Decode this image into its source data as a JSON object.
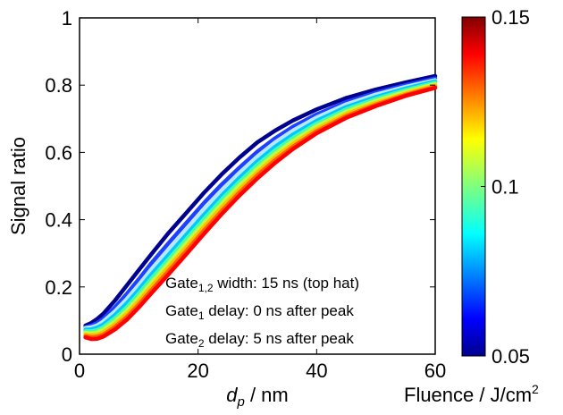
{
  "chart_data": {
    "type": "line",
    "xlabel_main": "d",
    "xlabel_sub": "p",
    "xlabel_unit": " / nm",
    "ylabel": "Signal ratio",
    "xlim": [
      0,
      60
    ],
    "ylim": [
      0,
      1
    ],
    "x_ticks": [
      "0",
      "20",
      "40",
      "60"
    ],
    "y_ticks": [
      "0",
      "0.2",
      "0.4",
      "0.6",
      "0.8",
      "1"
    ],
    "x": [
      1,
      2,
      3,
      4,
      6,
      8,
      10,
      12,
      15,
      18,
      21,
      24,
      27,
      30,
      33,
      36,
      40,
      45,
      50,
      55,
      60
    ],
    "series": [
      {
        "fluence": 0.05,
        "color": "#00008f",
        "values": [
          0.085,
          0.093,
          0.105,
          0.12,
          0.16,
          0.205,
          0.25,
          0.295,
          0.36,
          0.42,
          0.48,
          0.535,
          0.585,
          0.63,
          0.665,
          0.695,
          0.728,
          0.762,
          0.787,
          0.808,
          0.827
        ]
      },
      {
        "fluence": 0.065,
        "color": "#1e40ff",
        "values": [
          0.08,
          0.085,
          0.093,
          0.105,
          0.14,
          0.18,
          0.223,
          0.268,
          0.33,
          0.39,
          0.45,
          0.505,
          0.555,
          0.602,
          0.642,
          0.676,
          0.713,
          0.75,
          0.778,
          0.8,
          0.82
        ]
      },
      {
        "fluence": 0.08,
        "color": "#b8e8ff",
        "values": [
          0.078,
          0.08,
          0.086,
          0.097,
          0.128,
          0.165,
          0.206,
          0.25,
          0.31,
          0.37,
          0.43,
          0.487,
          0.54,
          0.588,
          0.63,
          0.665,
          0.704,
          0.743,
          0.772,
          0.795,
          0.815
        ]
      },
      {
        "fluence": 0.09,
        "color": "#00c8ff",
        "values": [
          0.073,
          0.074,
          0.079,
          0.088,
          0.117,
          0.152,
          0.192,
          0.235,
          0.295,
          0.355,
          0.415,
          0.472,
          0.525,
          0.574,
          0.617,
          0.653,
          0.694,
          0.735,
          0.765,
          0.79,
          0.811
        ]
      },
      {
        "fluence": 0.1,
        "color": "#40ffb0",
        "values": [
          0.068,
          0.068,
          0.072,
          0.08,
          0.107,
          0.14,
          0.18,
          0.222,
          0.282,
          0.342,
          0.402,
          0.46,
          0.513,
          0.563,
          0.606,
          0.643,
          0.686,
          0.728,
          0.759,
          0.785,
          0.807
        ]
      },
      {
        "fluence": 0.11,
        "color": "#c0ff40",
        "values": [
          0.063,
          0.062,
          0.065,
          0.073,
          0.098,
          0.13,
          0.169,
          0.21,
          0.27,
          0.33,
          0.39,
          0.448,
          0.502,
          0.552,
          0.596,
          0.634,
          0.678,
          0.721,
          0.753,
          0.78,
          0.803
        ]
      },
      {
        "fluence": 0.12,
        "color": "#ffc000",
        "values": [
          0.058,
          0.056,
          0.058,
          0.065,
          0.089,
          0.12,
          0.158,
          0.199,
          0.258,
          0.318,
          0.379,
          0.437,
          0.491,
          0.541,
          0.586,
          0.625,
          0.67,
          0.714,
          0.747,
          0.775,
          0.799
        ]
      },
      {
        "fluence": 0.13,
        "color": "#ff6000",
        "values": [
          0.054,
          0.05,
          0.052,
          0.058,
          0.081,
          0.111,
          0.148,
          0.188,
          0.247,
          0.307,
          0.368,
          0.426,
          0.481,
          0.532,
          0.577,
          0.617,
          0.663,
          0.708,
          0.742,
          0.771,
          0.795
        ]
      },
      {
        "fluence": 0.14,
        "color": "#ff0000",
        "values": [
          0.05,
          0.045,
          0.046,
          0.052,
          0.074,
          0.103,
          0.139,
          0.179,
          0.237,
          0.297,
          0.358,
          0.417,
          0.472,
          0.523,
          0.569,
          0.61,
          0.657,
          0.703,
          0.738,
          0.768,
          0.792
        ]
      }
    ],
    "annotation": {
      "line1": {
        "pre": "Gate",
        "sub": "1,2",
        "post": " width: 15 ns (top hat)"
      },
      "line2": {
        "pre": "Gate",
        "sub": "1",
        "post": " delay: 0 ns after peak"
      },
      "line3": {
        "pre": "Gate",
        "sub": "2",
        "post": " delay: 5 ns after peak"
      }
    },
    "colorbar": {
      "label": "Fluence / J/cm",
      "label_sup": "2",
      "range": [
        0.05,
        0.15
      ],
      "ticks": [
        "0.15",
        "0.1",
        "0.05"
      ],
      "colormap": "jet"
    },
    "grid": false
  }
}
